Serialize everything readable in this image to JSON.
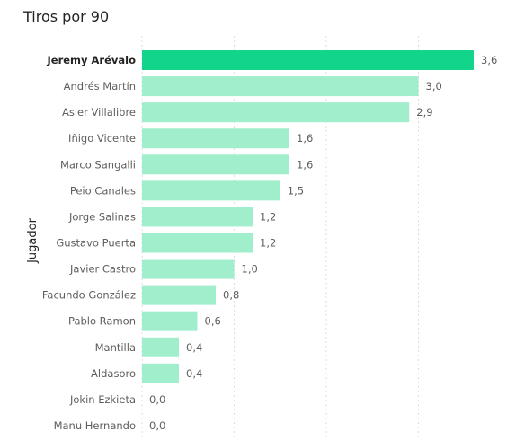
{
  "title": "Tiros por 90",
  "chart_data": {
    "type": "bar",
    "orientation": "horizontal",
    "title": "Tiros por 90",
    "ylabel": "Jugador",
    "xlabel": "",
    "categories": [
      "Jeremy Arévalo",
      "Andrés Martín",
      "Asier Villalibre",
      "Iñigo Vicente",
      "Marco Sangalli",
      "Peio Canales",
      "Jorge Salinas",
      "Gustavo Puerta",
      "Javier Castro",
      "Facundo González",
      "Pablo Ramon",
      "Mantilla",
      "Aldasoro",
      "Jokin Ezkieta",
      "Manu Hernando"
    ],
    "values": [
      3.6,
      3.0,
      2.9,
      1.6,
      1.6,
      1.5,
      1.2,
      1.2,
      1.0,
      0.8,
      0.6,
      0.4,
      0.4,
      0.0,
      0.0
    ],
    "value_labels": [
      "3,6",
      "3,0",
      "2,9",
      "1,6",
      "1,6",
      "1,5",
      "1,2",
      "1,2",
      "1,0",
      "0,8",
      "0,6",
      "0,4",
      "0,4",
      "0,0",
      "0,0"
    ],
    "highlighted_category": "Jeremy Arévalo",
    "xlim": [
      0,
      3.6
    ],
    "grid": "vertical-dotted",
    "colors": {
      "highlight": "#12d48a",
      "default": "#a1eecc"
    }
  }
}
